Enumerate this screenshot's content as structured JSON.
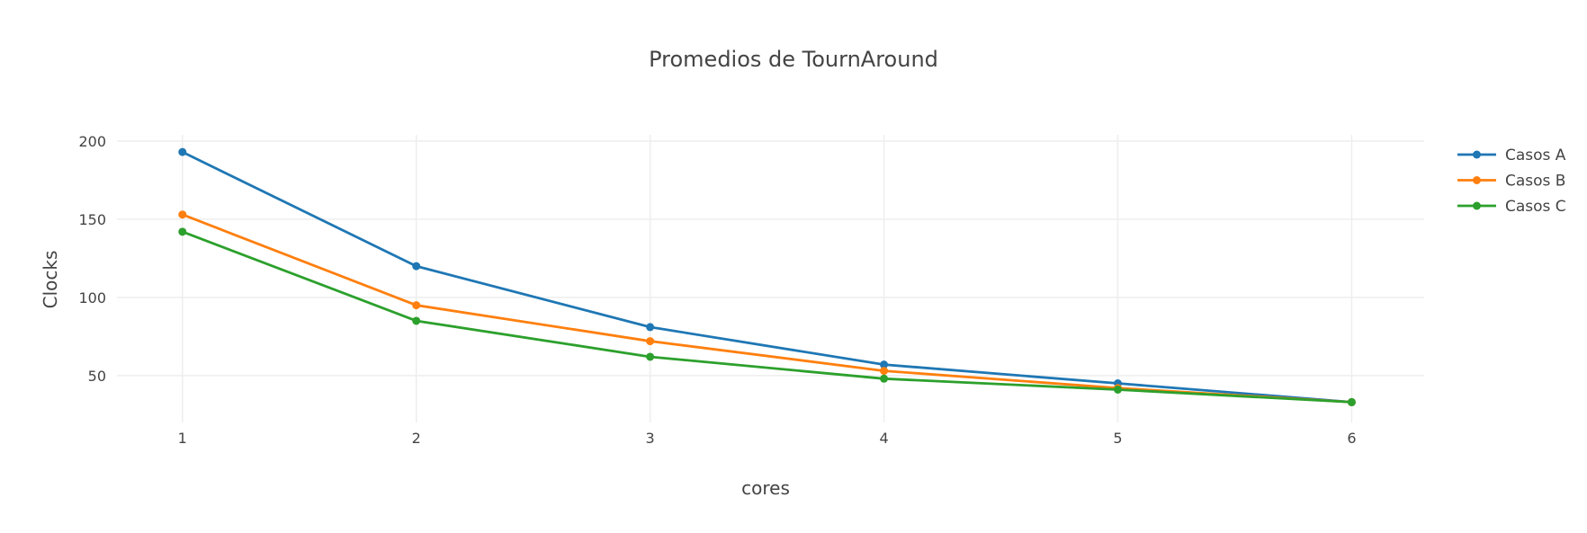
{
  "chart_data": {
    "type": "line",
    "title": "Promedios de TournAround",
    "xlabel": "cores",
    "ylabel": "Clocks",
    "x": [
      1,
      2,
      3,
      4,
      5,
      6
    ],
    "xticks": [
      "1",
      "2",
      "3",
      "4",
      "5",
      "6"
    ],
    "yticks": [
      50,
      100,
      150,
      200
    ],
    "xlim": [
      0.72,
      6.31
    ],
    "ylim": [
      20,
      204
    ],
    "grid": true,
    "legend_position": "top-right",
    "series": [
      {
        "name": "Casos A",
        "color": "#1f77b4",
        "values": [
          193,
          120,
          81,
          57,
          45,
          33
        ]
      },
      {
        "name": "Casos B",
        "color": "#ff7f0e",
        "values": [
          153,
          95,
          72,
          53,
          42,
          33
        ]
      },
      {
        "name": "Casos C",
        "color": "#2ca02c",
        "values": [
          142,
          85,
          62,
          48,
          41,
          33
        ]
      }
    ]
  }
}
